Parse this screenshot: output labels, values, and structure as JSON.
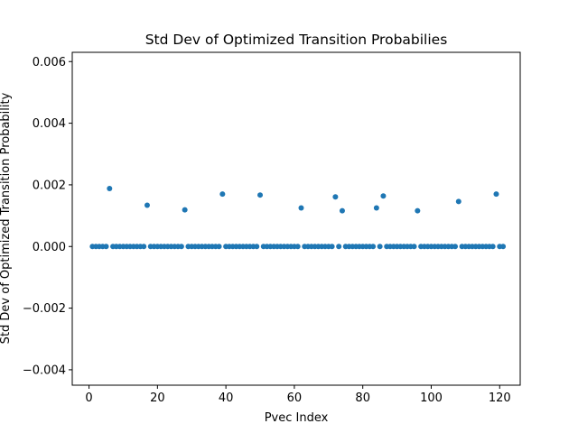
{
  "chart_data": {
    "type": "scatter",
    "title": "Std Dev of Optimized Transition Probabilies",
    "xlabel": "Pvec Index",
    "ylabel": "Std Dev of Optimized Transition Probability",
    "xlim": [
      -4.9,
      126
    ],
    "ylim": [
      -0.0045,
      0.0063
    ],
    "xticks": [
      0,
      20,
      40,
      60,
      80,
      100,
      120
    ],
    "yticks": [
      -0.004,
      -0.002,
      0.0,
      0.002,
      0.004,
      0.006
    ],
    "ytick_labels": [
      "−0.004",
      "−0.002",
      "0.000",
      "0.002",
      "0.004",
      "0.006"
    ],
    "grid": false,
    "marker_color": "#1f77b4",
    "series": [
      {
        "x": [
          1,
          2,
          3,
          4,
          5,
          6,
          7,
          8,
          9,
          10,
          11,
          12,
          13,
          14,
          15,
          16,
          17,
          18,
          19,
          20,
          21,
          22,
          23,
          24,
          25,
          26,
          27,
          28,
          29,
          30,
          31,
          32,
          33,
          34,
          35,
          36,
          37,
          38,
          39,
          40,
          41,
          42,
          43,
          44,
          45,
          46,
          47,
          48,
          49,
          50,
          51,
          52,
          53,
          54,
          55,
          56,
          57,
          58,
          59,
          60,
          61,
          62,
          63,
          64,
          65,
          66,
          67,
          68,
          69,
          70,
          71,
          72,
          73,
          74,
          75,
          76,
          77,
          78,
          79,
          80,
          81,
          82,
          83,
          84,
          85,
          86,
          87,
          88,
          89,
          90,
          91,
          92,
          93,
          94,
          95,
          96,
          97,
          98,
          99,
          100,
          101,
          102,
          103,
          104,
          105,
          106,
          107,
          108,
          109,
          110,
          111,
          112,
          113,
          114,
          115,
          116,
          117,
          118,
          119,
          120,
          121
        ],
        "y": [
          0,
          0,
          0,
          0,
          0,
          0.00188,
          0,
          0,
          0,
          0,
          0,
          0,
          0,
          0,
          0,
          0,
          0.00134,
          0,
          0,
          0,
          0,
          0,
          0,
          0,
          0,
          0,
          0,
          0.00119,
          0,
          0,
          0,
          0,
          0,
          0,
          0,
          0,
          0,
          0,
          0.0017,
          0,
          0,
          0,
          0,
          0,
          0,
          0,
          0,
          0,
          0,
          0.00167,
          0,
          0,
          0,
          0,
          0,
          0,
          0,
          0,
          0,
          0,
          0,
          0.00125,
          0,
          0,
          0,
          0,
          0,
          0,
          0,
          0,
          0,
          0.00161,
          0,
          0.00116,
          0,
          0,
          0,
          0,
          0,
          0,
          0,
          0,
          0,
          0.00125,
          0,
          0.00164,
          0,
          0,
          0,
          0,
          0,
          0,
          0,
          0,
          0,
          0.00116,
          0,
          0,
          0,
          0,
          0,
          0,
          0,
          0,
          0,
          0,
          0,
          0.00146,
          0,
          0,
          0,
          0,
          0,
          0,
          0,
          0,
          0,
          0,
          0.0017,
          0,
          0
        ]
      }
    ]
  }
}
